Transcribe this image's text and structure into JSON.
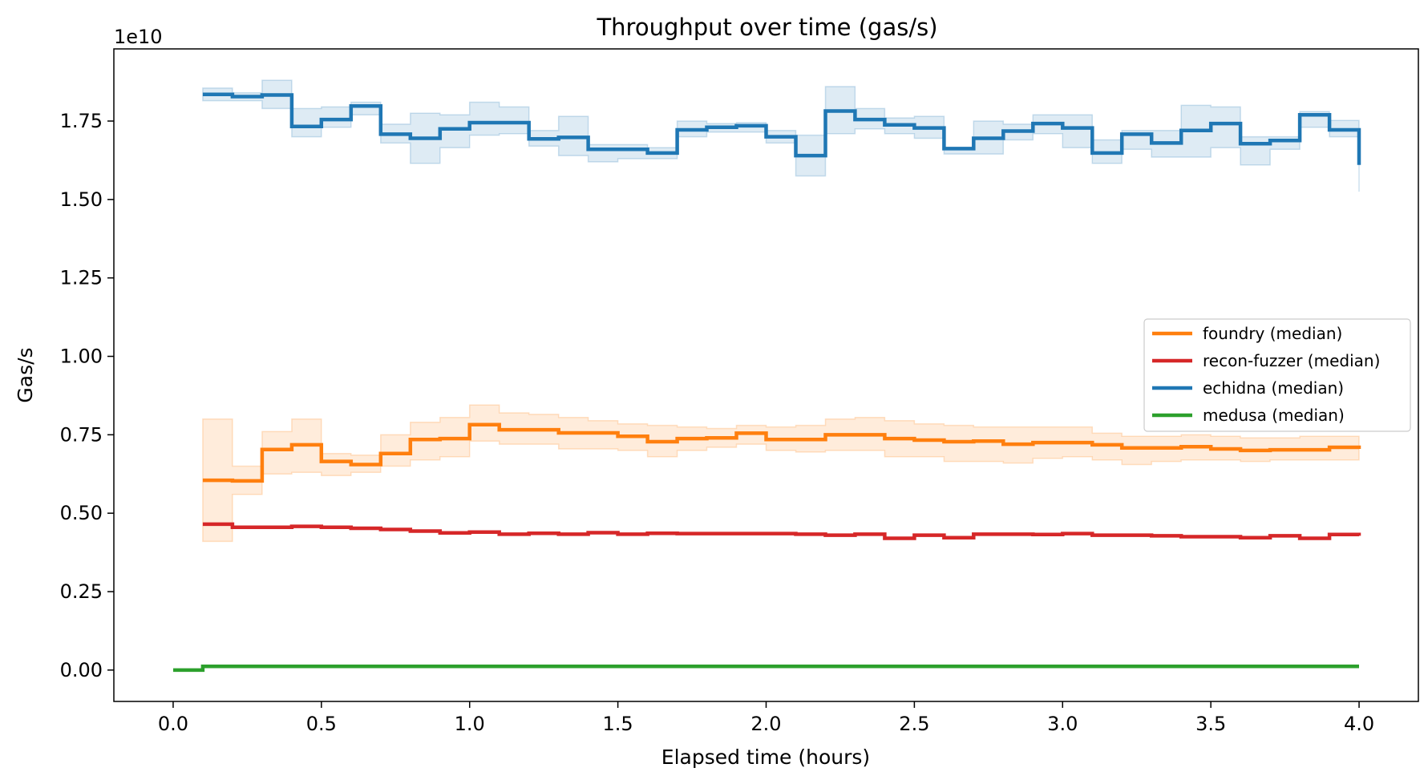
{
  "chart_data": {
    "type": "line",
    "step": "post",
    "title": "Throughput over time (gas/s)",
    "xlabel": "Elapsed time (hours)",
    "ylabel": "Gas/s",
    "offset_label": "1e10",
    "xlim": [
      -0.2,
      4.2
    ],
    "ylim": [
      -0.1,
      1.98
    ],
    "xticks": [
      0.0,
      0.5,
      1.0,
      1.5,
      2.0,
      2.5,
      3.0,
      3.5,
      4.0
    ],
    "xtick_labels": [
      "0.0",
      "0.5",
      "1.0",
      "1.5",
      "2.0",
      "2.5",
      "3.0",
      "3.5",
      "4.0"
    ],
    "yticks": [
      0.0,
      0.25,
      0.5,
      0.75,
      1.0,
      1.25,
      1.5,
      1.75
    ],
    "ytick_labels": [
      "0.00",
      "0.25",
      "0.50",
      "0.75",
      "1.00",
      "1.25",
      "1.50",
      "1.75"
    ],
    "grid": false,
    "legend_position": "center-right",
    "x": [
      0.1,
      0.2,
      0.3,
      0.4,
      0.5,
      0.6,
      0.7,
      0.8,
      0.9,
      1.0,
      1.1,
      1.2,
      1.3,
      1.4,
      1.5,
      1.6,
      1.7,
      1.8,
      1.9,
      2.0,
      2.1,
      2.2,
      2.3,
      2.4,
      2.5,
      2.6,
      2.7,
      2.8,
      2.9,
      3.0,
      3.1,
      3.2,
      3.3,
      3.4,
      3.5,
      3.6,
      3.7,
      3.8,
      3.9,
      4.0
    ],
    "series": [
      {
        "name": "foundry (median)",
        "color": "#ff7f0e",
        "values": [
          0.605,
          0.603,
          0.703,
          0.718,
          0.665,
          0.655,
          0.69,
          0.735,
          0.738,
          0.782,
          0.766,
          0.766,
          0.756,
          0.756,
          0.745,
          0.728,
          0.738,
          0.74,
          0.755,
          0.735,
          0.735,
          0.75,
          0.75,
          0.738,
          0.733,
          0.728,
          0.73,
          0.72,
          0.725,
          0.725,
          0.718,
          0.708,
          0.708,
          0.712,
          0.705,
          0.7,
          0.702,
          0.702,
          0.71,
          0.705
        ],
        "lower": [
          0.41,
          0.56,
          0.625,
          0.63,
          0.62,
          0.63,
          0.65,
          0.67,
          0.68,
          0.73,
          0.72,
          0.72,
          0.705,
          0.705,
          0.7,
          0.68,
          0.7,
          0.71,
          0.72,
          0.7,
          0.695,
          0.7,
          0.7,
          0.68,
          0.68,
          0.665,
          0.665,
          0.66,
          0.675,
          0.68,
          0.67,
          0.655,
          0.665,
          0.67,
          0.67,
          0.665,
          0.67,
          0.67,
          0.67,
          0.67
        ],
        "upper": [
          0.8,
          0.65,
          0.76,
          0.8,
          0.69,
          0.685,
          0.75,
          0.79,
          0.805,
          0.845,
          0.82,
          0.815,
          0.805,
          0.795,
          0.785,
          0.78,
          0.775,
          0.77,
          0.78,
          0.775,
          0.78,
          0.8,
          0.805,
          0.795,
          0.785,
          0.78,
          0.775,
          0.775,
          0.775,
          0.775,
          0.755,
          0.745,
          0.745,
          0.75,
          0.745,
          0.74,
          0.74,
          0.745,
          0.745,
          0.745
        ]
      },
      {
        "name": "recon-fuzzer (median)",
        "color": "#d62728",
        "values": [
          0.465,
          0.455,
          0.455,
          0.458,
          0.455,
          0.452,
          0.448,
          0.443,
          0.437,
          0.44,
          0.433,
          0.436,
          0.433,
          0.438,
          0.433,
          0.436,
          0.435,
          0.435,
          0.435,
          0.435,
          0.433,
          0.43,
          0.433,
          0.42,
          0.43,
          0.422,
          0.433,
          0.433,
          0.432,
          0.435,
          0.43,
          0.43,
          0.428,
          0.425,
          0.425,
          0.422,
          0.428,
          0.42,
          0.432,
          0.428
        ]
      },
      {
        "name": "echidna (median)",
        "color": "#1f77b4",
        "values": [
          1.835,
          1.828,
          1.833,
          1.733,
          1.755,
          1.798,
          1.708,
          1.695,
          1.725,
          1.745,
          1.745,
          1.693,
          1.698,
          1.66,
          1.66,
          1.648,
          1.722,
          1.73,
          1.735,
          1.7,
          1.64,
          1.782,
          1.755,
          1.738,
          1.728,
          1.662,
          1.695,
          1.718,
          1.742,
          1.728,
          1.648,
          1.708,
          1.68,
          1.72,
          1.742,
          1.678,
          1.688,
          1.77,
          1.722,
          1.61
        ],
        "lower": [
          1.815,
          1.815,
          1.79,
          1.7,
          1.73,
          1.77,
          1.68,
          1.615,
          1.665,
          1.705,
          1.71,
          1.67,
          1.64,
          1.62,
          1.63,
          1.63,
          1.7,
          1.715,
          1.715,
          1.68,
          1.575,
          1.71,
          1.725,
          1.71,
          1.695,
          1.645,
          1.645,
          1.69,
          1.71,
          1.665,
          1.615,
          1.66,
          1.635,
          1.635,
          1.665,
          1.61,
          1.66,
          1.73,
          1.7,
          1.525
        ],
        "upper": [
          1.855,
          1.84,
          1.88,
          1.79,
          1.795,
          1.81,
          1.74,
          1.775,
          1.77,
          1.81,
          1.795,
          1.72,
          1.765,
          1.675,
          1.675,
          1.665,
          1.75,
          1.742,
          1.745,
          1.72,
          1.705,
          1.86,
          1.79,
          1.76,
          1.765,
          1.665,
          1.75,
          1.74,
          1.77,
          1.77,
          1.69,
          1.72,
          1.72,
          1.8,
          1.795,
          1.7,
          1.7,
          1.78,
          1.752,
          1.752
        ]
      },
      {
        "name": "medusa (median)",
        "color": "#2ca02c",
        "x": [
          0.0,
          0.1,
          4.0
        ],
        "values": [
          0.0,
          0.012,
          0.012
        ]
      }
    ]
  }
}
